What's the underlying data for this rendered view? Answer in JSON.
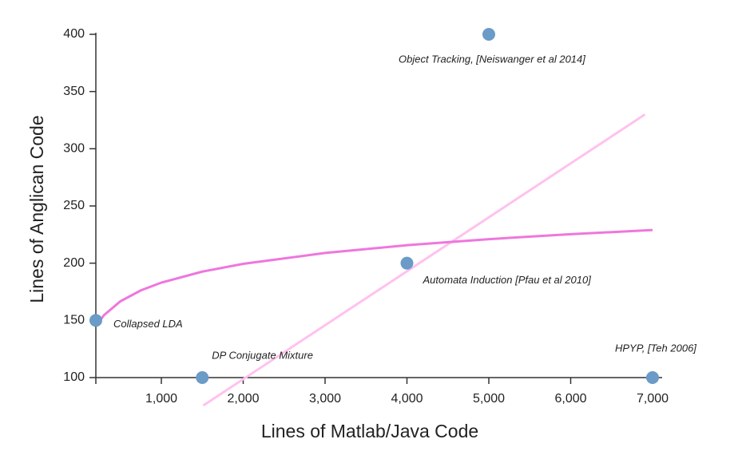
{
  "chart_data": {
    "type": "scatter",
    "x_label": "Lines of Matlab/Java Code",
    "y_label": "Lines of Anglican Code",
    "xlim": [
      200,
      7000
    ],
    "ylim": [
      100,
      400
    ],
    "xticks": [
      {
        "value": 1000,
        "label": "1,000"
      },
      {
        "value": 2000,
        "label": "2,000"
      },
      {
        "value": 3000,
        "label": "3,000"
      },
      {
        "value": 4000,
        "label": "4,000"
      },
      {
        "value": 5000,
        "label": "5,000"
      },
      {
        "value": 6000,
        "label": "6,000"
      },
      {
        "value": 7000,
        "label": "7,000"
      }
    ],
    "yticks": [
      100,
      150,
      200,
      250,
      300,
      350,
      400
    ],
    "series": [
      {
        "type": "scatter",
        "color": "#6b9bc7",
        "x": [
          200,
          1500,
          4000,
          5000,
          7000
        ],
        "values": [
          150,
          100,
          200,
          400,
          100
        ],
        "labels": [
          "Collapsed LDA",
          "DP Conjugate Mixture",
          "Automata Induction [Pfau et al 2010]",
          "Object Tracking, [Neiswanger et al 2014]",
          "HPYP, [Teh 2006]"
        ]
      },
      {
        "type": "line",
        "color": "#ffc2ee",
        "x": [
          1512,
          6907
        ],
        "values": [
          75.6,
          330
        ]
      },
      {
        "type": "line",
        "color": "#ee77dd",
        "x": [
          200,
          300,
          500,
          750,
          1000,
          1500,
          2000,
          3000,
          4000,
          5000,
          6000,
          7000
        ],
        "values": [
          145,
          154.6,
          166.7,
          176.2,
          183,
          192.6,
          199.4,
          208.9,
          215.7,
          221,
          225.3,
          229
        ]
      }
    ]
  }
}
